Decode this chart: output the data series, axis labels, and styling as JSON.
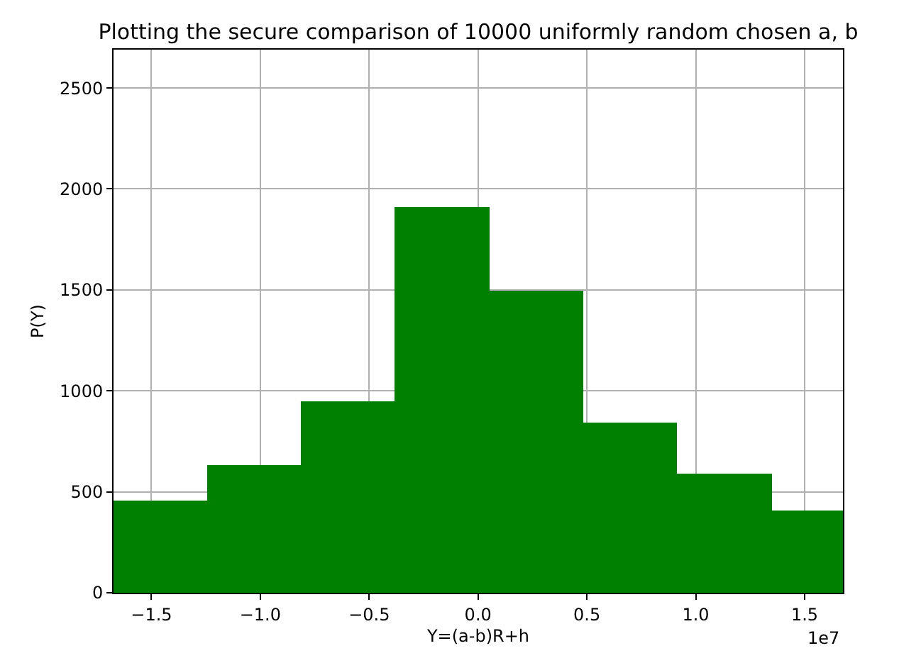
{
  "chart_data": {
    "type": "histogram",
    "title": "Plotting the secure comparison of 10000 uniformly random chosen a, b",
    "xlabel": "Y=(a-b)R+h",
    "ylabel": "P(Y)",
    "bins": [
      -1.674,
      -1.247,
      -0.813,
      -0.382,
      0.05,
      0.485,
      0.916,
      1.35,
      1.676
    ],
    "values": [
      455,
      635,
      950,
      1910,
      1495,
      844,
      590,
      408
    ],
    "color": "#008000",
    "xlim": [
      -1.674,
      1.676
    ],
    "ylim": [
      0,
      2690
    ],
    "xticks": [
      {
        "value": -1.5,
        "label": "−1.5"
      },
      {
        "value": -1.0,
        "label": "−1.0"
      },
      {
        "value": -0.5,
        "label": "−0.5"
      },
      {
        "value": 0.0,
        "label": "0.0"
      },
      {
        "value": 0.5,
        "label": "0.5"
      },
      {
        "value": 1.0,
        "label": "1.0"
      },
      {
        "value": 1.5,
        "label": "1.5"
      }
    ],
    "yticks": [
      0,
      500,
      1000,
      1500,
      2000,
      2500
    ],
    "grid": true,
    "annotations": [
      "1e7"
    ]
  }
}
